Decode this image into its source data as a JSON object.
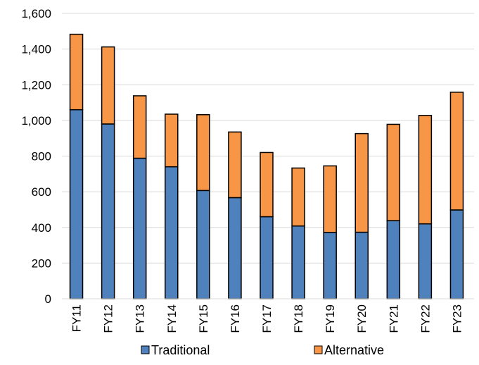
{
  "chart_data": {
    "type": "bar",
    "stacked": true,
    "categories": [
      "FY11",
      "FY12",
      "FY13",
      "FY14",
      "FY15",
      "FY16",
      "FY17",
      "FY18",
      "FY19",
      "FY20",
      "FY21",
      "FY22",
      "FY23"
    ],
    "series": [
      {
        "name": "Traditional",
        "color": "#4f81bd",
        "values": [
          1060,
          980,
          788,
          740,
          607,
          567,
          460,
          408,
          372,
          373,
          438,
          420,
          498
        ]
      },
      {
        "name": "Alternative",
        "color": "#f79646",
        "values": [
          423,
          432,
          350,
          295,
          425,
          368,
          360,
          325,
          373,
          553,
          540,
          608,
          660
        ]
      }
    ],
    "ylim": [
      0,
      1600
    ],
    "yticks": [
      "0",
      "200",
      "400",
      "600",
      "800",
      "1,000",
      "1,200",
      "1,400",
      "1,600"
    ],
    "grid": true,
    "legend": "bottom"
  }
}
